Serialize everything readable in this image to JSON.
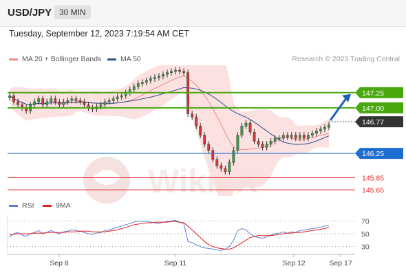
{
  "header": {
    "symbol": "USD/JPY",
    "timeframe": "30 MIN",
    "datetime": "Tuesday, September 12, 2023 7:19:54 AM CET"
  },
  "legend": {
    "ma20": "MA 20 + Bollinger Bands",
    "ma50": "MA 50",
    "ma20_color": "#f08a8a",
    "ma50_color": "#2c4f8c"
  },
  "research": "Research © 2023 Trading Central",
  "rsi_legend": {
    "rsi": "RSI",
    "ma9": "9MA",
    "rsi_color": "#5b7fd6",
    "ma9_color": "#e01e1e"
  },
  "watermark": "WikiFX",
  "chart_data": {
    "type": "candlestick",
    "pair": "USD/JPY",
    "ylim": [
      145.55,
      147.7
    ],
    "x_labels": [
      "Sep 8",
      "Sep 11",
      "Sep 12",
      "Sep 17"
    ],
    "current_price": 146.77,
    "levels": [
      {
        "value": 147.25,
        "label": "147.25",
        "type": "resistance",
        "color": "#4aa80f"
      },
      {
        "value": 147.0,
        "label": "147.00",
        "type": "resistance",
        "color": "#4aa80f"
      },
      {
        "value": 146.25,
        "label": "146.25",
        "type": "pivot",
        "color": "#1c6fd1"
      },
      {
        "value": 145.85,
        "label": "145.85",
        "type": "support",
        "color": "#e02a2a"
      },
      {
        "value": 145.65,
        "label": "145.65",
        "type": "support",
        "color": "#e02a2a"
      }
    ],
    "closes": [
      147.2,
      147.1,
      147.05,
      147.0,
      146.95,
      147.05,
      147.1,
      147.15,
      147.05,
      147.1,
      147.15,
      147.1,
      147.05,
      147.1,
      147.12,
      147.15,
      147.12,
      147.1,
      147.05,
      147.0,
      146.98,
      147.02,
      147.05,
      147.1,
      147.12,
      147.15,
      147.18,
      147.2,
      147.25,
      147.3,
      147.35,
      147.4,
      147.42,
      147.45,
      147.48,
      147.5,
      147.52,
      147.55,
      147.58,
      147.6,
      147.62,
      147.6,
      147.58,
      146.9,
      146.85,
      146.7,
      146.55,
      146.4,
      146.3,
      146.15,
      146.05,
      146.0,
      145.95,
      146.1,
      146.3,
      146.55,
      146.7,
      146.75,
      146.6,
      146.45,
      146.4,
      146.35,
      146.4,
      146.45,
      146.5,
      146.5,
      146.55,
      146.52,
      146.55,
      146.5,
      146.55,
      146.5,
      146.55,
      146.58,
      146.62,
      146.65,
      146.68,
      146.72
    ],
    "rsi": {
      "ticks": [
        70,
        50,
        30
      ],
      "ylim": [
        20,
        80
      ],
      "rsi": [
        45,
        50,
        52,
        48,
        46,
        50,
        52,
        55,
        50,
        52,
        55,
        52,
        50,
        53,
        54,
        56,
        55,
        54,
        52,
        50,
        49,
        51,
        52,
        55,
        56,
        58,
        60,
        62,
        64,
        66,
        68,
        70,
        69,
        70,
        68,
        67,
        66,
        68,
        69,
        70,
        71,
        68,
        66,
        38,
        36,
        33,
        30,
        28,
        27,
        26,
        25,
        24,
        26,
        30,
        40,
        55,
        58,
        56,
        50,
        46,
        44,
        43,
        45,
        48,
        50,
        51,
        53,
        51,
        53,
        52,
        55,
        56,
        57,
        58,
        59,
        60,
        62,
        63
      ],
      "ma9": [
        48,
        49,
        50,
        50,
        50,
        50,
        51,
        51,
        51,
        52,
        52,
        52,
        52,
        52,
        53,
        53,
        53,
        54,
        54,
        54,
        53,
        53,
        53,
        53,
        54,
        55,
        56,
        58,
        60,
        62,
        64,
        65,
        66,
        67,
        67,
        68,
        68,
        68,
        68,
        69,
        69,
        68,
        67,
        62,
        56,
        50,
        44,
        38,
        33,
        30,
        28,
        27,
        26,
        26,
        28,
        32,
        36,
        40,
        44,
        46,
        47,
        47,
        47,
        47,
        48,
        49,
        50,
        51,
        51,
        52,
        52,
        53,
        54,
        55,
        56,
        57,
        58,
        60
      ]
    }
  }
}
